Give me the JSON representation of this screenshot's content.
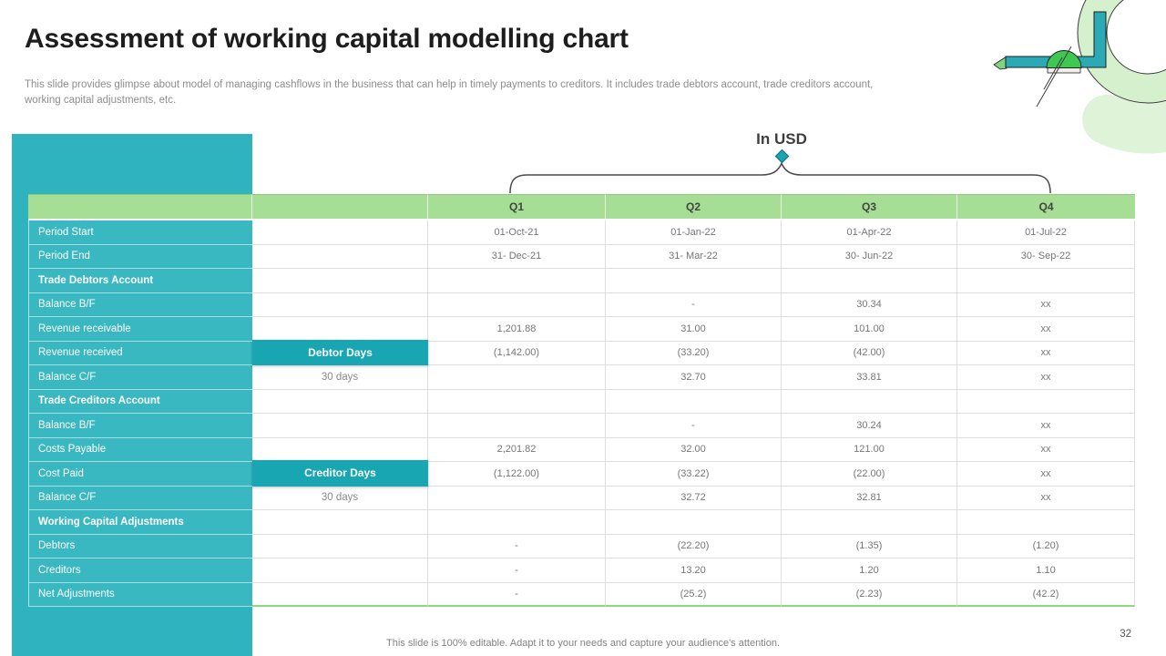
{
  "slide": {
    "title": "Assessment of working capital modelling chart",
    "subtitle": "This slide provides glimpse about model of managing cashflows in the business that can help in timely payments to creditors. It includes trade debtors account, trade creditors account, working capital adjustments, etc.",
    "footer": "This slide is 100% editable. Adapt it to your needs and capture your audience's attention.",
    "page_number": "32"
  },
  "annotation": {
    "label": "In USD",
    "marker_icon": "diamond-icon"
  },
  "colors": {
    "teal_panel": "#2fb3bf",
    "teal_cell": "#39b8c1",
    "teal_dark": "#17a6b2",
    "header_green": "#a7de96",
    "table_bottom_green": "#8ed87e"
  },
  "table": {
    "quarters": [
      "Q1",
      "Q2",
      "Q3",
      "Q4"
    ],
    "rows": [
      {
        "label": "Period Start",
        "bold": false,
        "days": "",
        "days_type": "none",
        "values": [
          "01-Oct-21",
          "01-Jan-22",
          "01-Apr-22",
          "01-Jul-22"
        ]
      },
      {
        "label": "Period End",
        "bold": false,
        "days": "",
        "days_type": "none",
        "values": [
          "31- Dec-21",
          "31- Mar-22",
          "30- Jun-22",
          "30- Sep-22"
        ]
      },
      {
        "label": "Trade Debtors Account",
        "bold": true,
        "days": "",
        "days_type": "none",
        "values": [
          "",
          "",
          "",
          ""
        ]
      },
      {
        "label": "Balance B/F",
        "bold": false,
        "days": "",
        "days_type": "none",
        "values": [
          "",
          "-",
          "30.34",
          "xx"
        ]
      },
      {
        "label": "Revenue receivable",
        "bold": false,
        "days": "",
        "days_type": "none",
        "values": [
          "1,201.88",
          "31.00",
          "101.00",
          "xx"
        ]
      },
      {
        "label": "Revenue received",
        "bold": false,
        "days": "Debtor Days",
        "days_type": "dark",
        "values": [
          "(1,142.00)",
          "(33.20)",
          "(42.00)",
          "xx"
        ]
      },
      {
        "label": "Balance C/F",
        "bold": false,
        "days": "30 days",
        "days_type": "plain",
        "values": [
          "",
          "32.70",
          "33.81",
          "xx"
        ]
      },
      {
        "label": "Trade Creditors Account",
        "bold": true,
        "days": "",
        "days_type": "none",
        "values": [
          "",
          "",
          "",
          ""
        ]
      },
      {
        "label": "Balance B/F",
        "bold": false,
        "days": "",
        "days_type": "none",
        "values": [
          "",
          "-",
          "30.24",
          "xx"
        ]
      },
      {
        "label": "Costs Payable",
        "bold": false,
        "days": "",
        "days_type": "none",
        "values": [
          "2,201.82",
          "32.00",
          "121.00",
          "xx"
        ]
      },
      {
        "label": "Cost Paid",
        "bold": false,
        "days": "Creditor Days",
        "days_type": "dark",
        "values": [
          "(1,122.00)",
          "(33.22)",
          "(22.00)",
          "xx"
        ]
      },
      {
        "label": "Balance C/F",
        "bold": false,
        "days": "30 days",
        "days_type": "plain",
        "values": [
          "",
          "32.72",
          "32.81",
          "xx"
        ]
      },
      {
        "label": "Working Capital Adjustments",
        "bold": true,
        "days": "",
        "days_type": "none",
        "values": [
          "",
          "",
          "",
          ""
        ]
      },
      {
        "label": "Debtors",
        "bold": false,
        "days": "",
        "days_type": "none",
        "values": [
          "-",
          "(22.20)",
          "(1.35)",
          "(1.20)"
        ]
      },
      {
        "label": "Creditors",
        "bold": false,
        "days": "",
        "days_type": "none",
        "values": [
          "-",
          "13.20",
          "1.20",
          "1.10"
        ]
      },
      {
        "label": "Net Adjustments",
        "bold": false,
        "days": "",
        "days_type": "none",
        "values": [
          "-",
          "(25.2)",
          "(2.23)",
          "(42.2)"
        ]
      }
    ]
  }
}
